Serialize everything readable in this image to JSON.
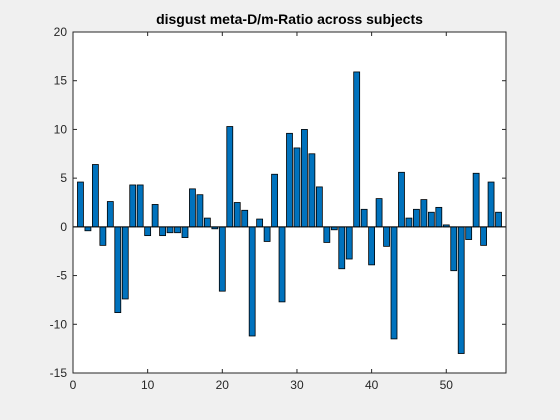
{
  "chart_data": {
    "type": "bar",
    "title": "disgust meta-D/m-Ratio across subjects",
    "xlabel": "",
    "ylabel": "",
    "xlim": [
      0,
      58
    ],
    "ylim": [
      -15,
      20
    ],
    "xticks": [
      0,
      10,
      20,
      30,
      40,
      50
    ],
    "yticks": [
      -15,
      -10,
      -5,
      0,
      5,
      10,
      15,
      20
    ],
    "grid": false,
    "legend": "none",
    "bar_color": "#0072bd",
    "bar_edge_color": "#000000",
    "background": "#f0f0f0",
    "axes_background": "#ffffff",
    "x": [
      1,
      2,
      3,
      4,
      5,
      6,
      7,
      8,
      9,
      10,
      11,
      12,
      13,
      14,
      15,
      16,
      17,
      18,
      19,
      20,
      21,
      22,
      23,
      24,
      25,
      26,
      27,
      28,
      29,
      30,
      31,
      32,
      33,
      34,
      35,
      36,
      37,
      38,
      39,
      40,
      41,
      42,
      43,
      44,
      45,
      46,
      47,
      48,
      49,
      50,
      51,
      52,
      53,
      54,
      55,
      56,
      57
    ],
    "values": [
      4.6,
      -0.4,
      6.4,
      -1.9,
      2.6,
      -8.8,
      -7.4,
      4.3,
      4.3,
      -0.9,
      2.3,
      -0.9,
      -0.6,
      -0.6,
      -1.1,
      3.9,
      3.3,
      0.9,
      -0.2,
      -6.6,
      10.3,
      2.5,
      1.7,
      -11.2,
      0.8,
      -1.5,
      5.4,
      -7.7,
      9.6,
      8.1,
      10.0,
      7.5,
      4.1,
      -1.6,
      -0.3,
      -4.3,
      -3.3,
      15.9,
      1.8,
      -3.9,
      2.9,
      -2.0,
      -11.5,
      5.6,
      0.9,
      1.8,
      2.8,
      1.5,
      2.0,
      0.2,
      -4.5,
      -13.0,
      -1.3,
      5.5,
      -1.9,
      4.6,
      1.5
    ]
  }
}
